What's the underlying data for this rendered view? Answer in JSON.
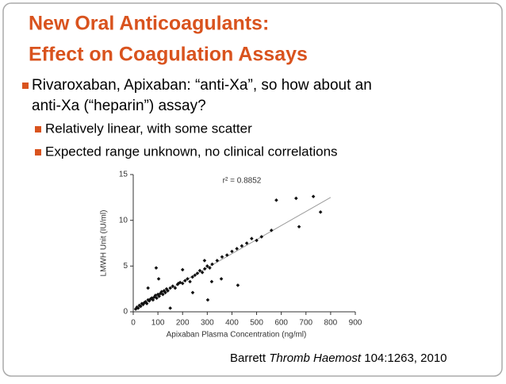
{
  "slide": {
    "title": [
      "New Oral Anticoagulants:",
      "Effect on Coagulation Assays"
    ],
    "bullets": [
      {
        "level": 1,
        "lines": [
          "Rivaroxaban, Apixaban:  “anti-Xa”, so how about an",
          "anti-Xa (“heparin”) assay?"
        ]
      },
      {
        "level": 2,
        "lines": [
          "Relatively linear, with some scatter"
        ]
      },
      {
        "level": 2,
        "lines": [
          "Expected range unknown, no clinical correlations"
        ]
      }
    ],
    "citation": {
      "author": "Barrett",
      "journal": "Thromb Haemost",
      "ref": "104:1263, 2010"
    }
  },
  "chart_data": {
    "type": "scatter",
    "annotation": "r² = 0.8852",
    "x_label": "Apixaban Plasma Concentration (ng/ml)",
    "y_label": "LMWH Unit (IU/ml)",
    "xlim": [
      0,
      900
    ],
    "xticks": [
      0,
      100,
      200,
      300,
      400,
      500,
      600,
      700,
      800,
      900
    ],
    "ylim": [
      0,
      15
    ],
    "yticks": [
      0,
      5,
      10,
      15
    ],
    "color": "#111111",
    "x": [
      10,
      15,
      20,
      25,
      30,
      35,
      40,
      45,
      50,
      55,
      60,
      65,
      70,
      75,
      80,
      85,
      90,
      95,
      100,
      105,
      110,
      115,
      120,
      125,
      130,
      135,
      140,
      150,
      160,
      170,
      180,
      190,
      200,
      210,
      220,
      230,
      240,
      250,
      260,
      270,
      280,
      290,
      300,
      310,
      320,
      340,
      360,
      380,
      400,
      420,
      440,
      460,
      480,
      500,
      520,
      560,
      580,
      660,
      672,
      730,
      759,
      93,
      103,
      183,
      241,
      302,
      357,
      424,
      318,
      289,
      150,
      60,
      200
    ],
    "values": [
      0.3,
      0.5,
      0.4,
      0.7,
      0.6,
      0.9,
      0.8,
      1.0,
      1.1,
      0.9,
      1.3,
      1.2,
      1.4,
      1.5,
      1.3,
      1.6,
      1.8,
      1.5,
      1.9,
      1.7,
      2.0,
      2.2,
      1.9,
      2.3,
      2.1,
      2.5,
      2.3,
      2.6,
      2.8,
      2.6,
      3.0,
      3.2,
      3.1,
      3.4,
      3.6,
      3.3,
      3.8,
      4.0,
      4.2,
      4.5,
      4.3,
      4.7,
      5.0,
      4.8,
      5.2,
      5.6,
      6.0,
      6.2,
      6.6,
      6.9,
      7.2,
      7.5,
      8.0,
      7.8,
      8.2,
      8.9,
      12.2,
      12.4,
      9.3,
      12.6,
      10.9,
      4.8,
      3.6,
      3.1,
      2.1,
      1.3,
      3.6,
      2.9,
      3.3,
      5.6,
      0.4,
      2.6,
      4.6
    ],
    "fit": {
      "color": "#999999",
      "x": [
        0,
        800
      ],
      "values": [
        0.2,
        12.5
      ]
    }
  }
}
